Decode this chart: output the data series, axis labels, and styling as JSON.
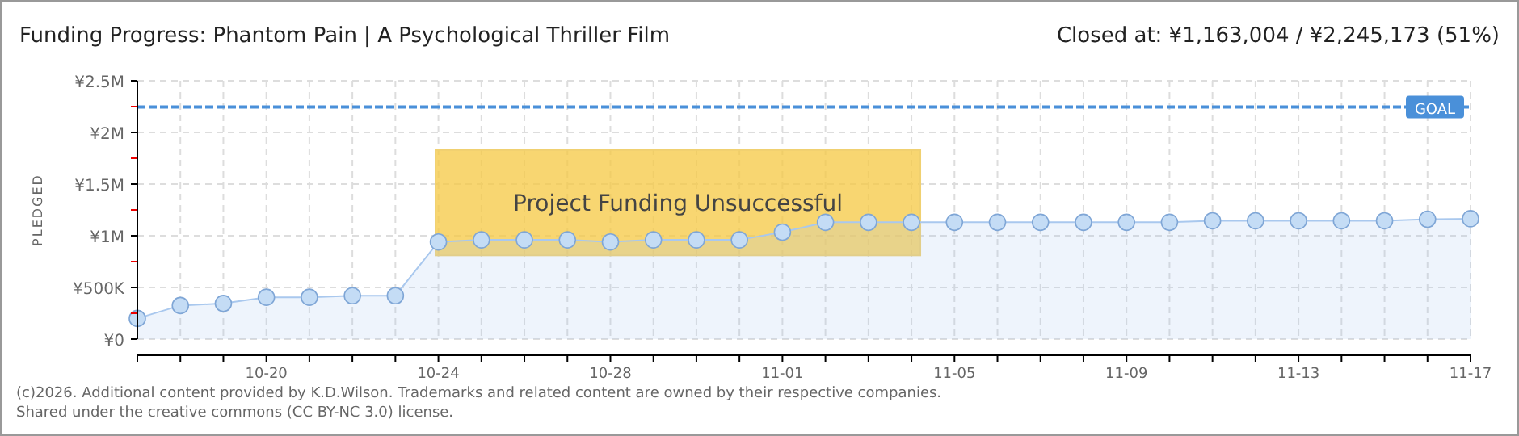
{
  "chart_data": {
    "type": "area",
    "title": "Funding Progress: Phantom Pain | A Psychological Thriller Film",
    "subtitle": "Closed at: ¥1,163,004 / ¥2,245,173 (51%)",
    "ylabel": "PLEDGED",
    "x": [
      "--10-17",
      "--10-18",
      "--10-19",
      "--10-20",
      "--10-21",
      "--10-22",
      "--10-23",
      "--10-24",
      "--10-25",
      "--10-26",
      "--10-27",
      "--10-28",
      "--10-29",
      "--10-30",
      "--10-31",
      "--11-01",
      "--11-02",
      "--11-03",
      "--11-04",
      "--11-05",
      "--11-06",
      "--11-07",
      "--11-08",
      "--11-09",
      "--11-10",
      "--11-11",
      "--11-12",
      "--11-13",
      "--11-14",
      "--11-15",
      "--11-16",
      "--11-17"
    ],
    "series": [
      {
        "color": "#a9c8ee",
        "values": [
          200000,
          325000,
          345000,
          405000,
          405000,
          420000,
          420000,
          940000,
          960000,
          960000,
          960000,
          940000,
          960000,
          960000,
          960000,
          1035000,
          1130000,
          1130000,
          1130000,
          1130000,
          1130000,
          1130000,
          1130000,
          1130000,
          1130000,
          1145000,
          1145000,
          1145000,
          1145000,
          1145000,
          1160000,
          1165000
        ]
      }
    ],
    "marker": "circle",
    "grid": true,
    "xlim": [
      "--10-17",
      "--11-17"
    ],
    "xticks": [
      {
        "value": "--10-17",
        "label": null
      },
      {
        "value": "--10-18",
        "label": null
      },
      {
        "value": "--10-19",
        "label": null
      },
      {
        "value": "--10-20",
        "label": "10-20"
      },
      {
        "value": "--10-21",
        "label": null
      },
      {
        "value": "--10-22",
        "label": null
      },
      {
        "value": "--10-23",
        "label": null
      },
      {
        "value": "--10-24",
        "label": "10-24"
      },
      {
        "value": "--10-25",
        "label": null
      },
      {
        "value": "--10-26",
        "label": null
      },
      {
        "value": "--10-27",
        "label": null
      },
      {
        "value": "--10-28",
        "label": "10-28"
      },
      {
        "value": "--10-29",
        "label": null
      },
      {
        "value": "--10-30",
        "label": null
      },
      {
        "value": "--10-31",
        "label": null
      },
      {
        "value": "--11-01",
        "label": "11-01"
      },
      {
        "value": "--11-02",
        "label": null
      },
      {
        "value": "--11-03",
        "label": null
      },
      {
        "value": "--11-04",
        "label": null
      },
      {
        "value": "--11-05",
        "label": "11-05"
      },
      {
        "value": "--11-06",
        "label": null
      },
      {
        "value": "--11-07",
        "label": null
      },
      {
        "value": "--11-08",
        "label": null
      },
      {
        "value": "--11-09",
        "label": "11-09"
      },
      {
        "value": "--11-10",
        "label": null
      },
      {
        "value": "--11-11",
        "label": null
      },
      {
        "value": "--11-12",
        "label": null
      },
      {
        "value": "--11-13",
        "label": "11-13"
      },
      {
        "value": "--11-14",
        "label": null
      },
      {
        "value": "--11-15",
        "label": null
      },
      {
        "value": "--11-16",
        "label": null
      },
      {
        "value": "--11-17",
        "label": "11-17"
      }
    ],
    "ylim": [
      0,
      2500000
    ],
    "yticks": [
      {
        "value": 0,
        "label": "¥0"
      },
      {
        "value": 250000,
        "label": null
      },
      {
        "value": 500000,
        "label": "¥500K"
      },
      {
        "value": 750000,
        "label": null
      },
      {
        "value": 1000000,
        "label": "¥1M"
      },
      {
        "value": 1250000,
        "label": null
      },
      {
        "value": 1500000,
        "label": "¥1.5M"
      },
      {
        "value": 1750000,
        "label": null
      },
      {
        "value": 2000000,
        "label": "¥2M"
      },
      {
        "value": 2250000,
        "label": null
      },
      {
        "value": 2500000,
        "label": "¥2.5M"
      }
    ],
    "ref_lines": [
      {
        "axis": "y",
        "value": 2245173,
        "label": "GOAL",
        "color": "#4a90d9",
        "line_style": "dashed"
      }
    ],
    "annotations": [
      "Project Funding Unsuccessful",
      "(c)2026. Additional content provided by K.D.Wilson. Trademarks and related content are owned by their respective companies.",
      "Shared under the creative commons (CC BY-NC 3.0) license."
    ]
  }
}
